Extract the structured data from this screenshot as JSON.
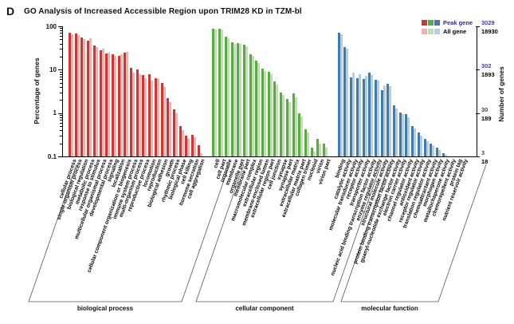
{
  "panel_label": "D",
  "title": "GO Analysis of Increased Accessible Region upon TRIM28 KD in TZM-bl",
  "legend": {
    "peak_label": "Peak gene",
    "all_label": "All gene",
    "peak_text_color": "#2b2b9c",
    "all_text_color": "#000000"
  },
  "chart_data": {
    "type": "bar",
    "y_scale": "log",
    "ylim": [
      0.1,
      100
    ],
    "ylabel_left": "Percentage of genes",
    "ylabel_right": "Number of genes",
    "left_ticks": [
      "100",
      "10",
      "1",
      "0.1"
    ],
    "right_ticks": [
      {
        "peak": "3029",
        "all": "18930"
      },
      {
        "peak": "302",
        "all": "1893"
      },
      {
        "peak": "30",
        "all": "189"
      },
      {
        "peak": "3",
        "all": "18"
      }
    ],
    "right_peak_color": "#3a3ab0",
    "right_all_color": "#000000",
    "legend_position": "top-right",
    "grid": false,
    "series": [
      "Peak gene",
      "All gene"
    ],
    "groups": [
      {
        "name": "biological process",
        "peak_color": "#cd3632",
        "all_color": "#f2b1ac",
        "terms": [
          {
            "label": "cellular process",
            "peak": 71,
            "all": 66
          },
          {
            "label": "single-organism process",
            "peak": 69,
            "all": 63
          },
          {
            "label": "biological regulation",
            "peak": 55,
            "all": 50
          },
          {
            "label": "metabolic process",
            "peak": 47,
            "all": 52
          },
          {
            "label": "response to stimulus",
            "peak": 37,
            "all": 33
          },
          {
            "label": "multicellular organismal process",
            "peak": 28,
            "all": 30
          },
          {
            "label": "developmental process",
            "peak": 24,
            "all": 25
          },
          {
            "label": "signaling",
            "peak": 23,
            "all": 21
          },
          {
            "label": "localization",
            "peak": 21,
            "all": 23
          },
          {
            "label": "cellular component organization or biogenesis",
            "peak": 25,
            "all": 26
          },
          {
            "label": "immune system process",
            "peak": 11,
            "all": 8.5
          },
          {
            "label": "multi-organism process",
            "peak": 10,
            "all": 8
          },
          {
            "label": "reproductive process",
            "peak": 7.5,
            "all": 6.5
          },
          {
            "label": "locomotion",
            "peak": 8,
            "all": 5.5
          },
          {
            "label": "reproduction",
            "peak": 6.5,
            "all": 6
          },
          {
            "label": "biological adhesion",
            "peak": 5,
            "all": 4
          },
          {
            "label": "growth",
            "peak": 2.2,
            "all": 1.8
          },
          {
            "label": "rhythmic process",
            "peak": 1.2,
            "all": 1.0
          },
          {
            "label": "biological phase",
            "peak": 0.5,
            "all": 0.4
          },
          {
            "label": "cell killing",
            "peak": 0.3,
            "all": 0.25
          },
          {
            "label": "hormone secretion",
            "peak": 0.32,
            "all": 0.28
          },
          {
            "label": "cell aggregation",
            "peak": 0.18,
            "all": 0.12
          }
        ]
      },
      {
        "name": "cellular component",
        "peak_color": "#5aab48",
        "all_color": "#bfe1ad",
        "terms": [
          {
            "label": "cell",
            "peak": 90,
            "all": 85
          },
          {
            "label": "cell part",
            "peak": 90,
            "all": 85
          },
          {
            "label": "organelle",
            "peak": 57,
            "all": 52
          },
          {
            "label": "membrane",
            "peak": 43,
            "all": 40
          },
          {
            "label": "organelle part",
            "peak": 42,
            "all": 39
          },
          {
            "label": "membrane part",
            "peak": 38,
            "all": 35
          },
          {
            "label": "macromolecular complex",
            "peak": 23,
            "all": 21
          },
          {
            "label": "extracellular region",
            "peak": 16,
            "all": 14
          },
          {
            "label": "membrane-enclosed lumen",
            "peak": 10.5,
            "all": 9.5
          },
          {
            "label": "extracellular region part",
            "peak": 9,
            "all": 8
          },
          {
            "label": "cell junction",
            "peak": 5.3,
            "all": 4.5
          },
          {
            "label": "synapse",
            "peak": 3.0,
            "all": 2.6
          },
          {
            "label": "synapse part",
            "peak": 2.1,
            "all": 1.8
          },
          {
            "label": "extracellular matrix",
            "peak": 2.8,
            "all": 2.3
          },
          {
            "label": "extracellular matrix part",
            "peak": 1.0,
            "all": 0.85
          },
          {
            "label": "collagen trimer",
            "peak": 0.42,
            "all": 0.35
          },
          {
            "label": "nucleoid",
            "peak": 0.16,
            "all": 0.13
          },
          {
            "label": "virion",
            "peak": 0.25,
            "all": 0.2
          },
          {
            "label": "virion part",
            "peak": 0.2,
            "all": 0.16
          }
        ]
      },
      {
        "name": "molecular function",
        "peak_color": "#3f7cad",
        "all_color": "#b5cfe2",
        "terms": [
          {
            "label": "binding",
            "peak": 72,
            "all": 65
          },
          {
            "label": "catalytic activity",
            "peak": 33,
            "all": 30
          },
          {
            "label": "molecular transducer activity",
            "peak": 6.6,
            "all": 8.7
          },
          {
            "label": "receptor activity",
            "peak": 6.3,
            "all": 7.8
          },
          {
            "label": "transporter activity",
            "peak": 6.2,
            "all": 7.2
          },
          {
            "label": "nucleic acid binding transcription factor activity",
            "peak": 8.5,
            "all": 7.5
          },
          {
            "label": "enzyme regulator activity",
            "peak": 5.8,
            "all": 5.5
          },
          {
            "label": "structural molecule activity",
            "peak": 3.4,
            "all": 4.4
          },
          {
            "label": "protein binding transcription factor activity",
            "peak": 4.8,
            "all": 4.2
          },
          {
            "label": "guanyl-nucleotide exchange factor activity",
            "peak": 1.5,
            "all": 1.3
          },
          {
            "label": "electron carrier activity",
            "peak": 1.05,
            "all": 0.95
          },
          {
            "label": "channel regulator activity",
            "peak": 0.95,
            "all": 0.8
          },
          {
            "label": "antioxidant activity",
            "peak": 0.5,
            "all": 0.45
          },
          {
            "label": "receptor regulator activity",
            "peak": 0.36,
            "all": 0.3
          },
          {
            "label": "translation regulator activity",
            "peak": 0.25,
            "all": 0.22
          },
          {
            "label": "chemoattractant activity",
            "peak": 0.2,
            "all": 0.18
          },
          {
            "label": "morphogen activity",
            "peak": 0.16,
            "all": 0.14
          },
          {
            "label": "metallochaperone activity",
            "peak": 0.12,
            "all": 0.11
          },
          {
            "label": "chemorepellent activity",
            "peak": 0.1,
            "all": 0.1
          },
          {
            "label": "protein tag",
            "peak": 0.1,
            "all": 0.1
          },
          {
            "label": "nutrient reservoir activity",
            "peak": 0.1,
            "all": 0.1
          }
        ]
      }
    ]
  }
}
